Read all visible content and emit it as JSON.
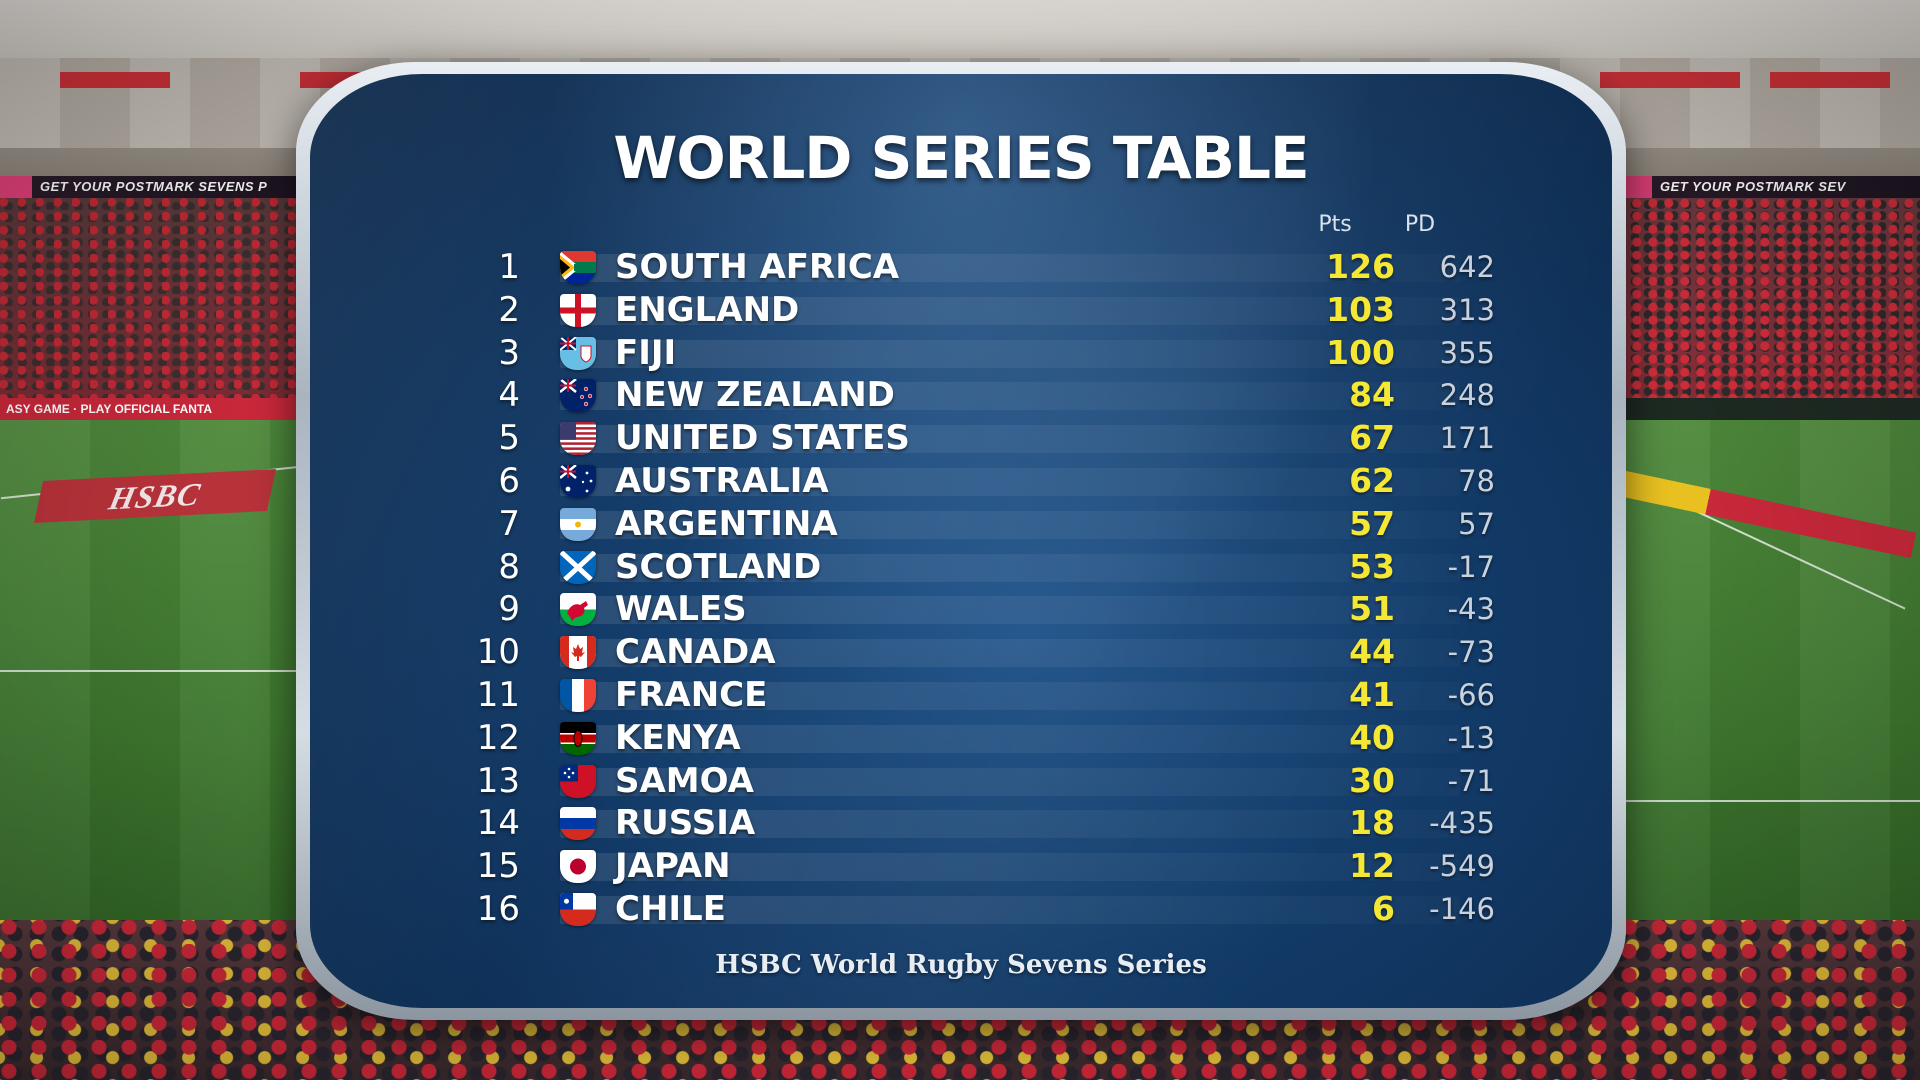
{
  "background": {
    "ad_board_left": "GET YOUR POSTMARK SEVENS P",
    "ad_board_right": "GET YOUR POSTMARK SEV",
    "fantasy_board": "ASY GAME · PLAY OFFICIAL FANTA",
    "pitch_logo": "HSBC"
  },
  "table": {
    "title": "WORLD SERIES TABLE",
    "col_pts": "Pts",
    "col_pd": "PD",
    "footer": "HSBC World Rugby Sevens Series",
    "rows": [
      {
        "pos": "1",
        "team": "SOUTH AFRICA",
        "pts": "126",
        "pd": "642",
        "flag": "south-africa-flag"
      },
      {
        "pos": "2",
        "team": "ENGLAND",
        "pts": "103",
        "pd": "313",
        "flag": "england-flag"
      },
      {
        "pos": "3",
        "team": "FIJI",
        "pts": "100",
        "pd": "355",
        "flag": "fiji-flag"
      },
      {
        "pos": "4",
        "team": "NEW ZEALAND",
        "pts": "84",
        "pd": "248",
        "flag": "new-zealand-flag"
      },
      {
        "pos": "5",
        "team": "UNITED STATES",
        "pts": "67",
        "pd": "171",
        "flag": "united-states-flag"
      },
      {
        "pos": "6",
        "team": "AUSTRALIA",
        "pts": "62",
        "pd": "78",
        "flag": "australia-flag"
      },
      {
        "pos": "7",
        "team": "ARGENTINA",
        "pts": "57",
        "pd": "57",
        "flag": "argentina-flag"
      },
      {
        "pos": "8",
        "team": "SCOTLAND",
        "pts": "53",
        "pd": "-17",
        "flag": "scotland-flag"
      },
      {
        "pos": "9",
        "team": "WALES",
        "pts": "51",
        "pd": "-43",
        "flag": "wales-flag"
      },
      {
        "pos": "10",
        "team": "CANADA",
        "pts": "44",
        "pd": "-73",
        "flag": "canada-flag"
      },
      {
        "pos": "11",
        "team": "FRANCE",
        "pts": "41",
        "pd": "-66",
        "flag": "france-flag"
      },
      {
        "pos": "12",
        "team": "KENYA",
        "pts": "40",
        "pd": "-13",
        "flag": "kenya-flag"
      },
      {
        "pos": "13",
        "team": "SAMOA",
        "pts": "30",
        "pd": "-71",
        "flag": "samoa-flag"
      },
      {
        "pos": "14",
        "team": "RUSSIA",
        "pts": "18",
        "pd": "-435",
        "flag": "russia-flag"
      },
      {
        "pos": "15",
        "team": "JAPAN",
        "pts": "12",
        "pd": "-549",
        "flag": "japan-flag"
      },
      {
        "pos": "16",
        "team": "CHILE",
        "pts": "6",
        "pd": "-146",
        "flag": "chile-flag"
      }
    ]
  },
  "colors": {
    "panel_blue": "#123a67",
    "points_yellow": "#f4e834",
    "pd_grey": "#c9d2dc",
    "text_white": "#ffffff"
  }
}
